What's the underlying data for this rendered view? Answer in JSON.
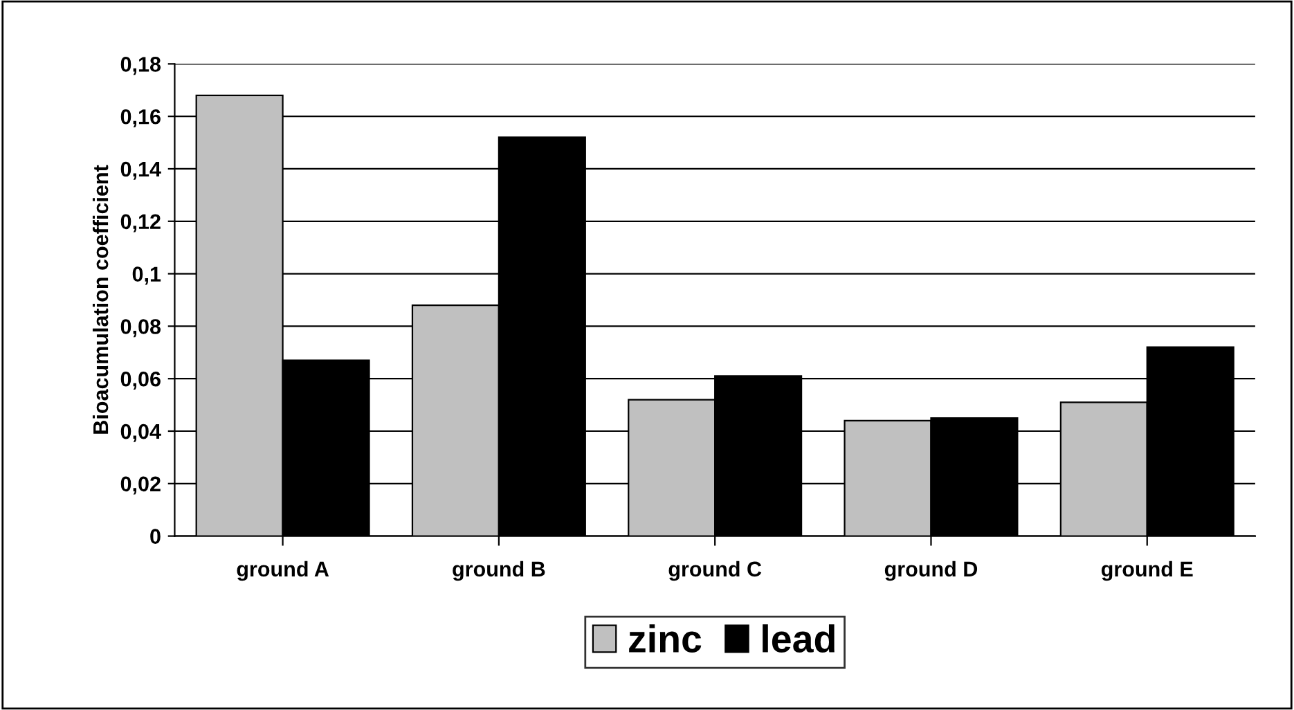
{
  "chart_data": {
    "type": "bar",
    "ylabel": "Bioacumulation coefficient",
    "categories": [
      "ground A",
      "ground B",
      "ground C",
      "ground D",
      "ground E"
    ],
    "series": [
      {
        "name": "zinc",
        "color": "#c0c0c0",
        "values": [
          0.168,
          0.088,
          0.052,
          0.044,
          0.051
        ]
      },
      {
        "name": "lead",
        "color": "#000000",
        "values": [
          0.067,
          0.152,
          0.061,
          0.045,
          0.072
        ]
      }
    ],
    "ylim": [
      0,
      0.18
    ],
    "yticks": [
      {
        "value": 0,
        "label": "0"
      },
      {
        "value": 0.02,
        "label": "0,02"
      },
      {
        "value": 0.04,
        "label": "0,04"
      },
      {
        "value": 0.06,
        "label": "0,06"
      },
      {
        "value": 0.08,
        "label": "0,08"
      },
      {
        "value": 0.1,
        "label": "0,1"
      },
      {
        "value": 0.12,
        "label": "0,12"
      },
      {
        "value": 0.14,
        "label": "0,14"
      },
      {
        "value": 0.16,
        "label": "0,16"
      },
      {
        "value": 0.18,
        "label": "0,18"
      }
    ],
    "grid": "y",
    "legend": "bottom"
  }
}
